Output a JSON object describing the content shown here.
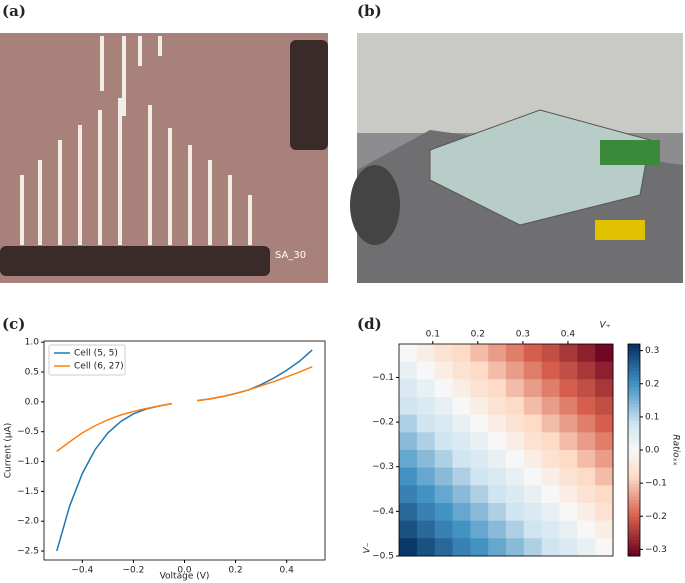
{
  "panel_labels": [
    "(a)",
    "(b)",
    "(c)",
    "(d)"
  ],
  "photo_a_text": "SA_30",
  "chart_data": [
    {
      "type": "line",
      "xlabel": "Voltage (V)",
      "ylabel": "Current (μA)",
      "legend": "upper left",
      "grid": false,
      "x": [
        -0.5,
        -0.45,
        -0.4,
        -0.35,
        -0.3,
        -0.25,
        -0.2,
        -0.15,
        -0.1,
        -0.05,
        0,
        0.05,
        0.1,
        0.15,
        0.2,
        0.25,
        0.3,
        0.35,
        0.4,
        0.45,
        0.5
      ],
      "series": [
        {
          "name": "Cell (5, 5)",
          "color": "#1f77b4",
          "values": [
            -2.5,
            -1.75,
            -1.2,
            -0.8,
            -0.52,
            -0.33,
            -0.2,
            -0.12,
            -0.07,
            -0.03,
            null,
            0.02,
            0.05,
            0.09,
            0.14,
            0.2,
            0.29,
            0.4,
            0.53,
            0.68,
            0.87
          ]
        },
        {
          "name": "Cell (6, 27)",
          "color": "#ff7f0e",
          "values": [
            -0.83,
            -0.67,
            -0.52,
            -0.4,
            -0.3,
            -0.22,
            -0.16,
            -0.11,
            -0.07,
            -0.03,
            null,
            0.02,
            0.05,
            0.09,
            0.14,
            0.2,
            0.27,
            0.34,
            0.42,
            0.5,
            0.59
          ]
        }
      ],
      "xlim": [
        -0.55,
        0.55
      ],
      "xticks": [
        {
          "value": -0.4,
          "label": "−0.4"
        },
        {
          "value": -0.2,
          "label": "−0.2"
        },
        {
          "value": 0,
          "label": "0.0"
        },
        0.2,
        0.4
      ],
      "ylim": [
        -2.65,
        1.02
      ],
      "yticks": [
        {
          "value": -2.5,
          "label": "−2.5"
        },
        {
          "value": -2,
          "label": "−2.0"
        },
        {
          "value": -1.5,
          "label": "−1.5"
        },
        {
          "value": -1,
          "label": "−1.0"
        },
        {
          "value": -0.5,
          "label": "−0.5"
        },
        {
          "value": 0,
          "label": "0.0"
        },
        0.5,
        {
          "value": 1,
          "label": "1.0"
        }
      ]
    },
    {
      "type": "heatmap",
      "xlabel": "V₊",
      "ylabel": "V₋",
      "colorbar_label": "Ratioₓₓ",
      "colormap": "RdBu",
      "xlim": [
        0.025,
        0.5
      ],
      "ylim": [
        -0.5,
        -0.025
      ],
      "xticks": [
        0.1,
        0.2,
        0.3,
        0.4
      ],
      "yticks": [
        {
          "value": -0.1,
          "label": "−0.1"
        },
        {
          "value": -0.2,
          "label": "−0.2"
        },
        {
          "value": -0.3,
          "label": "−0.3"
        },
        {
          "value": -0.4,
          "label": "−0.4"
        },
        {
          "value": -0.5,
          "label": "−0.5"
        }
      ],
      "clim": [
        -0.32,
        0.32
      ],
      "cticks": [
        0.3,
        0.2,
        0.1,
        {
          "value": 0,
          "label": "0.0"
        },
        {
          "value": -0.1,
          "label": "−0.1"
        },
        {
          "value": -0.2,
          "label": "−0.2"
        },
        {
          "value": -0.3,
          "label": "−0.3"
        }
      ],
      "values": [
        [
          0,
          -0.03,
          -0.06,
          -0.08,
          -0.11,
          -0.14,
          -0.17,
          -0.2,
          -0.22,
          -0.25,
          -0.28,
          -0.31
        ],
        [
          0.03,
          0,
          -0.03,
          -0.06,
          -0.08,
          -0.11,
          -0.14,
          -0.17,
          -0.2,
          -0.22,
          -0.25,
          -0.28
        ],
        [
          0.06,
          0.03,
          0,
          -0.03,
          -0.06,
          -0.08,
          -0.11,
          -0.14,
          -0.17,
          -0.2,
          -0.22,
          -0.25
        ],
        [
          0.08,
          0.06,
          0.03,
          0,
          -0.03,
          -0.06,
          -0.08,
          -0.11,
          -0.14,
          -0.17,
          -0.2,
          -0.22
        ],
        [
          0.11,
          0.08,
          0.06,
          0.03,
          0,
          -0.03,
          -0.06,
          -0.08,
          -0.11,
          -0.14,
          -0.17,
          -0.2
        ],
        [
          0.14,
          0.11,
          0.08,
          0.06,
          0.03,
          0,
          -0.03,
          -0.06,
          -0.08,
          -0.11,
          -0.14,
          -0.17
        ],
        [
          0.17,
          0.14,
          0.11,
          0.08,
          0.06,
          0.03,
          0,
          -0.03,
          -0.06,
          -0.08,
          -0.11,
          -0.14
        ],
        [
          0.2,
          0.17,
          0.14,
          0.11,
          0.08,
          0.06,
          0.03,
          0,
          -0.03,
          -0.06,
          -0.08,
          -0.11
        ],
        [
          0.22,
          0.2,
          0.17,
          0.14,
          0.11,
          0.08,
          0.06,
          0.03,
          0,
          -0.03,
          -0.06,
          -0.08
        ],
        [
          0.25,
          0.22,
          0.2,
          0.17,
          0.14,
          0.11,
          0.08,
          0.06,
          0.03,
          0,
          -0.03,
          -0.06
        ],
        [
          0.28,
          0.25,
          0.22,
          0.2,
          0.17,
          0.14,
          0.11,
          0.08,
          0.06,
          0.03,
          0,
          -0.03
        ],
        [
          0.31,
          0.28,
          0.25,
          0.22,
          0.2,
          0.17,
          0.14,
          0.11,
          0.08,
          0.06,
          0.03,
          0
        ]
      ]
    }
  ]
}
